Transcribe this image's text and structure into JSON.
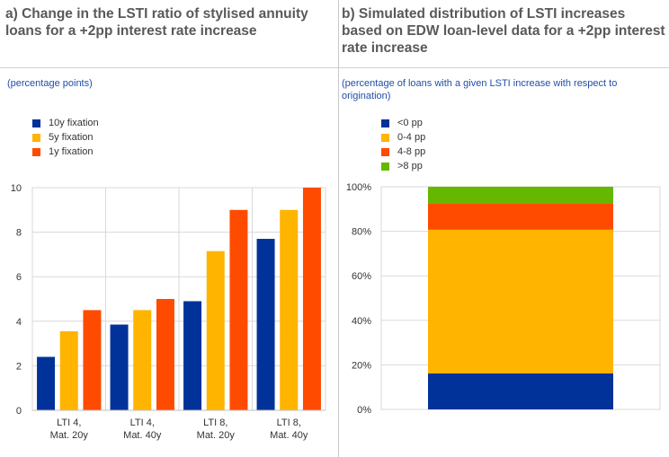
{
  "chart_data": [
    {
      "type": "bar",
      "title": "a) Change in the LSTI ratio of stylised annuity loans for a +2pp interest rate increase",
      "subtitle": "(percentage points)",
      "categories": [
        [
          "LTI 4,",
          "Mat. 20y"
        ],
        [
          "LTI 4,",
          "Mat. 40y"
        ],
        [
          "LTI 8,",
          "Mat. 20y"
        ],
        [
          "LTI 8,",
          "Mat. 40y"
        ]
      ],
      "series": [
        {
          "name": "10y fixation",
          "color": "#003299",
          "values": [
            2.4,
            3.85,
            4.9,
            7.7
          ]
        },
        {
          "name": "5y fixation",
          "color": "#ffb400",
          "values": [
            3.55,
            4.5,
            7.15,
            9.0
          ]
        },
        {
          "name": "1y fixation",
          "color": "#ff4b00",
          "values": [
            4.5,
            5.0,
            9.0,
            10.0
          ]
        }
      ],
      "ylim": [
        0,
        10
      ],
      "yticks": [
        "0",
        "2",
        "4",
        "6",
        "8",
        "10"
      ],
      "grid": true,
      "legend": "top-left"
    },
    {
      "type": "bar",
      "stacked": true,
      "title": "b) Simulated distribution of LSTI increases based on EDW loan-level data for a +2pp interest rate increase",
      "subtitle": "(percentage of loans with a given LSTI increase with respect to origination)",
      "series": [
        {
          "name": "<0 pp",
          "color": "#003299",
          "value": 16.2
        },
        {
          "name": "0-4 pp",
          "color": "#ffb400",
          "value": 64.5
        },
        {
          "name": "4-8 pp",
          "color": "#ff4b00",
          "value": 11.9
        },
        {
          "name": ">8 pp",
          "color": "#65b800",
          "value": 7.4
        }
      ],
      "ylim": [
        0,
        100
      ],
      "yticks": [
        "0%",
        "20%",
        "40%",
        "60%",
        "80%",
        "100%"
      ],
      "grid": true,
      "legend": "top-left"
    }
  ]
}
